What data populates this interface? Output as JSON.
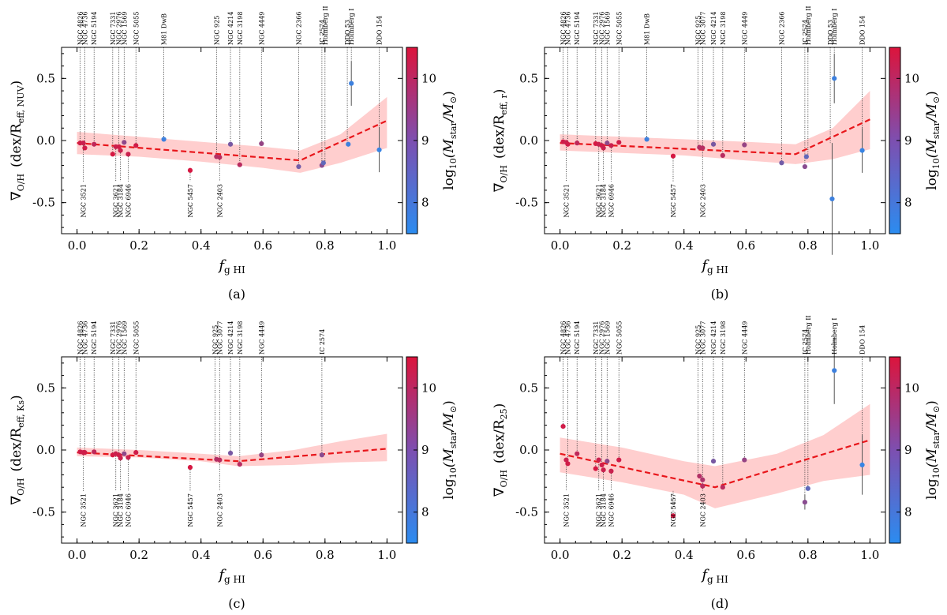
{
  "figure": {
    "panel_labels": [
      "(a)",
      "(b)",
      "(c)",
      "(d)"
    ],
    "colorbar": {
      "label": "log10(Mstar/M⊙)",
      "range": [
        7.5,
        10.5
      ],
      "ticks": [
        8,
        9,
        10
      ],
      "low_color": "#2b8cf0",
      "high_color": "#dc143c"
    },
    "band_color": "#ffc2c2",
    "fit_color": "#e8161b"
  },
  "chart_data": [
    {
      "type": "scatter",
      "panel": "(a)",
      "xlabel": "f g HI",
      "ylabel": "∇O/H (dex/Reff, NUV)",
      "ylabel_parts": {
        "main": "∇",
        "sub": "O/H",
        "unit": "(dex/R",
        "unit_sub": "eff, NUV",
        "close": ")"
      },
      "xlim": [
        -0.05,
        1.05
      ],
      "ylim": [
        -0.75,
        0.75
      ],
      "xticks": [
        0.0,
        0.2,
        0.4,
        0.6,
        0.8,
        1.0
      ],
      "yticks": [
        -0.5,
        0.0,
        0.5
      ],
      "fit": {
        "x": [
          0.0,
          0.72,
          1.0
        ],
        "y": [
          -0.02,
          -0.16,
          0.16
        ]
      },
      "band": {
        "x": [
          0.0,
          0.2,
          0.4,
          0.6,
          0.72,
          0.85,
          1.0
        ],
        "upper": [
          0.07,
          0.03,
          -0.01,
          -0.05,
          -0.08,
          0.05,
          0.35
        ],
        "lower": [
          -0.11,
          -0.13,
          -0.17,
          -0.22,
          -0.26,
          -0.18,
          -0.06
        ]
      },
      "points": [
        {
          "x": 0.01,
          "y": -0.02,
          "m": 10.3
        },
        {
          "x": 0.02,
          "y": -0.02,
          "m": 10.2
        },
        {
          "x": 0.025,
          "y": -0.06,
          "m": 10.3
        },
        {
          "x": 0.055,
          "y": -0.03,
          "m": 10.0
        },
        {
          "x": 0.115,
          "y": -0.11,
          "m": 10.4
        },
        {
          "x": 0.125,
          "y": -0.05,
          "m": 10.2
        },
        {
          "x": 0.135,
          "y": -0.05,
          "m": 10.3
        },
        {
          "x": 0.14,
          "y": -0.08,
          "m": 10.2
        },
        {
          "x": 0.152,
          "y": -0.015,
          "m": 9.2
        },
        {
          "x": 0.165,
          "y": -0.11,
          "m": 10.2
        },
        {
          "x": 0.19,
          "y": -0.04,
          "m": 10.3
        },
        {
          "x": 0.28,
          "y": 0.01,
          "m": 7.8
        },
        {
          "x": 0.365,
          "y": -0.24,
          "m": 10.4
        },
        {
          "x": 0.45,
          "y": -0.13,
          "m": 9.8
        },
        {
          "x": 0.46,
          "y": -0.135,
          "m": 9.9
        },
        {
          "x": 0.495,
          "y": -0.03,
          "m": 8.8
        },
        {
          "x": 0.525,
          "y": -0.195,
          "m": 9.9
        },
        {
          "x": 0.595,
          "y": -0.025,
          "m": 9.3
        },
        {
          "x": 0.715,
          "y": -0.21,
          "m": 8.7
        },
        {
          "x": 0.79,
          "y": -0.2,
          "m": 9.1
        },
        {
          "x": 0.795,
          "y": -0.18,
          "m": 8.4
        },
        {
          "x": 0.875,
          "y": -0.03,
          "m": 7.8
        },
        {
          "x": 0.885,
          "y": 0.46,
          "m": 7.8,
          "err": 0.18
        },
        {
          "x": 0.975,
          "y": -0.075,
          "m": 7.7,
          "err": 0.18
        }
      ],
      "labels_top": [
        {
          "x": 0.01,
          "text": "NGC 4826"
        },
        {
          "x": 0.025,
          "text": "NGC 4736"
        },
        {
          "x": 0.055,
          "text": "NGC 5194"
        },
        {
          "x": 0.115,
          "text": "NGC 7331"
        },
        {
          "x": 0.135,
          "text": "NGC 2976"
        },
        {
          "x": 0.152,
          "text": "NGC 1569"
        },
        {
          "x": 0.19,
          "text": "NGC 5055"
        },
        {
          "x": 0.28,
          "text": "M81 DwB"
        },
        {
          "x": 0.45,
          "text": "NGC 925"
        },
        {
          "x": 0.495,
          "text": "NGC 4214"
        },
        {
          "x": 0.525,
          "text": "NGC 3198"
        },
        {
          "x": 0.595,
          "text": "NGC 4449"
        },
        {
          "x": 0.715,
          "text": "NGC 2366"
        },
        {
          "x": 0.79,
          "text": "IC 2574"
        },
        {
          "x": 0.8,
          "text": "Holmberg II"
        },
        {
          "x": 0.872,
          "text": "DDO 53"
        },
        {
          "x": 0.885,
          "text": "Holmberg I"
        },
        {
          "x": 0.975,
          "text": "DDO 154"
        }
      ],
      "labels_bottom": [
        {
          "x": 0.02,
          "text": "NGC 3521"
        },
        {
          "x": 0.125,
          "text": "NGC 3621"
        },
        {
          "x": 0.14,
          "text": "NGC 3184"
        },
        {
          "x": 0.165,
          "text": "NGC 6946"
        },
        {
          "x": 0.365,
          "text": "NGC 5457"
        },
        {
          "x": 0.46,
          "text": "NGC 2403"
        }
      ]
    },
    {
      "type": "scatter",
      "panel": "(b)",
      "xlabel": "f g HI",
      "ylabel": "∇O/H (dex/Reff, r)",
      "ylabel_parts": {
        "main": "∇",
        "sub": "O/H",
        "unit": "(dex/R",
        "unit_sub": "eff, r",
        "close": ")"
      },
      "xlim": [
        -0.05,
        1.05
      ],
      "ylim": [
        -0.75,
        0.75
      ],
      "xticks": [
        0.0,
        0.2,
        0.4,
        0.6,
        0.8,
        1.0
      ],
      "yticks": [
        -0.5,
        0.0,
        0.5
      ],
      "fit": {
        "x": [
          0.0,
          0.76,
          1.0
        ],
        "y": [
          -0.02,
          -0.11,
          0.17
        ]
      },
      "band": {
        "x": [
          0.0,
          0.2,
          0.4,
          0.6,
          0.76,
          0.88,
          1.0
        ],
        "upper": [
          0.05,
          0.03,
          0.01,
          -0.01,
          -0.03,
          0.1,
          0.4
        ],
        "lower": [
          -0.08,
          -0.1,
          -0.12,
          -0.16,
          -0.19,
          -0.15,
          -0.07
        ]
      },
      "points": [
        {
          "x": 0.01,
          "y": -0.01,
          "m": 10.3
        },
        {
          "x": 0.02,
          "y": -0.015,
          "m": 10.2
        },
        {
          "x": 0.025,
          "y": -0.03,
          "m": 10.3
        },
        {
          "x": 0.055,
          "y": -0.02,
          "m": 10.0
        },
        {
          "x": 0.115,
          "y": -0.025,
          "m": 10.4
        },
        {
          "x": 0.125,
          "y": -0.03,
          "m": 10.2
        },
        {
          "x": 0.135,
          "y": -0.04,
          "m": 10.3
        },
        {
          "x": 0.14,
          "y": -0.06,
          "m": 10.2
        },
        {
          "x": 0.152,
          "y": -0.02,
          "m": 9.2
        },
        {
          "x": 0.165,
          "y": -0.04,
          "m": 10.2
        },
        {
          "x": 0.19,
          "y": -0.015,
          "m": 10.3
        },
        {
          "x": 0.28,
          "y": 0.01,
          "m": 7.8
        },
        {
          "x": 0.365,
          "y": -0.125,
          "m": 10.4
        },
        {
          "x": 0.45,
          "y": -0.055,
          "m": 9.8
        },
        {
          "x": 0.46,
          "y": -0.06,
          "m": 9.9
        },
        {
          "x": 0.495,
          "y": -0.03,
          "m": 8.8
        },
        {
          "x": 0.525,
          "y": -0.12,
          "m": 9.9
        },
        {
          "x": 0.595,
          "y": -0.035,
          "m": 9.3
        },
        {
          "x": 0.715,
          "y": -0.18,
          "m": 8.7
        },
        {
          "x": 0.79,
          "y": -0.21,
          "m": 9.1
        },
        {
          "x": 0.795,
          "y": -0.13,
          "m": 8.4
        },
        {
          "x": 0.878,
          "y": -0.47,
          "m": 7.8,
          "err": 0.45
        },
        {
          "x": 0.885,
          "y": 0.5,
          "m": 7.8,
          "err": 0.2
        },
        {
          "x": 0.975,
          "y": -0.08,
          "m": 7.7,
          "err": 0.18
        }
      ],
      "labels_top": [
        {
          "x": 0.01,
          "text": "NGC 4826"
        },
        {
          "x": 0.025,
          "text": "NGC 4736"
        },
        {
          "x": 0.055,
          "text": "NGC 5194"
        },
        {
          "x": 0.115,
          "text": "NGC 7331"
        },
        {
          "x": 0.135,
          "text": "NGC 2976"
        },
        {
          "x": 0.152,
          "text": "NGC 1569"
        },
        {
          "x": 0.19,
          "text": "NGC 5055"
        },
        {
          "x": 0.28,
          "text": "M81 DwB"
        },
        {
          "x": 0.445,
          "text": "NGC 925"
        },
        {
          "x": 0.46,
          "text": "NGC 3077"
        },
        {
          "x": 0.495,
          "text": "NGC 4214"
        },
        {
          "x": 0.525,
          "text": "NGC 3198"
        },
        {
          "x": 0.595,
          "text": "NGC 4449"
        },
        {
          "x": 0.715,
          "text": "NGC 2366"
        },
        {
          "x": 0.79,
          "text": "IC 2574"
        },
        {
          "x": 0.8,
          "text": "Holmberg II"
        },
        {
          "x": 0.872,
          "text": "DDO 53"
        },
        {
          "x": 0.885,
          "text": "Holmberg I"
        },
        {
          "x": 0.975,
          "text": "DDO 154"
        }
      ],
      "labels_bottom": [
        {
          "x": 0.02,
          "text": "NGC 3521"
        },
        {
          "x": 0.125,
          "text": "NGC 3621"
        },
        {
          "x": 0.14,
          "text": "NGC 3184"
        },
        {
          "x": 0.165,
          "text": "NGC 6946"
        },
        {
          "x": 0.365,
          "text": "NGC 5457"
        },
        {
          "x": 0.46,
          "text": "NGC 2403"
        }
      ]
    },
    {
      "type": "scatter",
      "panel": "(c)",
      "xlabel": "f g HI",
      "ylabel": "∇O/H (dex/Reff, Ks)",
      "ylabel_parts": {
        "main": "∇",
        "sub": "O/H",
        "unit": "(dex/R",
        "unit_sub": "eff, Ks",
        "close": ")"
      },
      "xlim": [
        -0.05,
        1.05
      ],
      "ylim": [
        -0.75,
        0.75
      ],
      "xticks": [
        0.0,
        0.2,
        0.4,
        0.6,
        0.8,
        1.0
      ],
      "yticks": [
        -0.5,
        0.0,
        0.5
      ],
      "fit": {
        "x": [
          0.0,
          0.52,
          1.0
        ],
        "y": [
          -0.02,
          -0.09,
          0.01
        ]
      },
      "band": {
        "x": [
          0.0,
          0.2,
          0.4,
          0.52,
          0.7,
          0.85,
          1.0
        ],
        "upper": [
          0.02,
          0.0,
          -0.03,
          -0.05,
          0.0,
          0.07,
          0.13
        ],
        "lower": [
          -0.05,
          -0.06,
          -0.09,
          -0.13,
          -0.12,
          -0.1,
          -0.09
        ]
      },
      "points": [
        {
          "x": 0.01,
          "y": -0.015,
          "m": 10.3
        },
        {
          "x": 0.02,
          "y": -0.02,
          "m": 10.2
        },
        {
          "x": 0.025,
          "y": -0.02,
          "m": 10.3
        },
        {
          "x": 0.055,
          "y": -0.015,
          "m": 10.0
        },
        {
          "x": 0.115,
          "y": -0.04,
          "m": 10.4
        },
        {
          "x": 0.125,
          "y": -0.03,
          "m": 10.2
        },
        {
          "x": 0.135,
          "y": -0.04,
          "m": 10.3
        },
        {
          "x": 0.14,
          "y": -0.065,
          "m": 10.2
        },
        {
          "x": 0.152,
          "y": -0.03,
          "m": 9.2
        },
        {
          "x": 0.165,
          "y": -0.06,
          "m": 10.2
        },
        {
          "x": 0.19,
          "y": -0.02,
          "m": 10.3
        },
        {
          "x": 0.365,
          "y": -0.14,
          "m": 10.4
        },
        {
          "x": 0.45,
          "y": -0.075,
          "m": 9.8
        },
        {
          "x": 0.46,
          "y": -0.08,
          "m": 9.9
        },
        {
          "x": 0.495,
          "y": -0.025,
          "m": 8.8
        },
        {
          "x": 0.525,
          "y": -0.115,
          "m": 9.9
        },
        {
          "x": 0.595,
          "y": -0.04,
          "m": 9.3
        },
        {
          "x": 0.79,
          "y": -0.04,
          "m": 9.1
        }
      ],
      "labels_top": [
        {
          "x": 0.01,
          "text": "NGC 4826"
        },
        {
          "x": 0.025,
          "text": "NGC 4736"
        },
        {
          "x": 0.055,
          "text": "NGC 5194"
        },
        {
          "x": 0.115,
          "text": "NGC 7331"
        },
        {
          "x": 0.135,
          "text": "NGC 2976"
        },
        {
          "x": 0.152,
          "text": "NGC 1569"
        },
        {
          "x": 0.19,
          "text": "NGC 5055"
        },
        {
          "x": 0.445,
          "text": "NGC 925"
        },
        {
          "x": 0.46,
          "text": "NGC 3077"
        },
        {
          "x": 0.495,
          "text": "NGC 4214"
        },
        {
          "x": 0.525,
          "text": "NGC 3198"
        },
        {
          "x": 0.595,
          "text": "NGC 4449"
        },
        {
          "x": 0.79,
          "text": "IC 2574"
        }
      ],
      "labels_bottom": [
        {
          "x": 0.02,
          "text": "NGC 3521"
        },
        {
          "x": 0.125,
          "text": "NGC 3621"
        },
        {
          "x": 0.14,
          "text": "NGC 3184"
        },
        {
          "x": 0.165,
          "text": "NGC 6946"
        },
        {
          "x": 0.365,
          "text": "NGC 5457"
        },
        {
          "x": 0.46,
          "text": "NGC 2403"
        }
      ]
    },
    {
      "type": "scatter",
      "panel": "(d)",
      "xlabel": "f g HI",
      "ylabel": "∇O/H (dex/R25)",
      "ylabel_parts": {
        "main": "∇",
        "sub": "O/H",
        "unit": "(dex/R",
        "unit_sub": "25",
        "close": ")"
      },
      "xlim": [
        -0.05,
        1.05
      ],
      "ylim": [
        -0.75,
        0.75
      ],
      "xticks": [
        0.0,
        0.2,
        0.4,
        0.6,
        0.8,
        1.0
      ],
      "yticks": [
        -0.5,
        0.0,
        0.5
      ],
      "fit": {
        "x": [
          0.0,
          0.5,
          1.0
        ],
        "y": [
          -0.03,
          -0.3,
          0.08
        ]
      },
      "band": {
        "x": [
          0.0,
          0.2,
          0.4,
          0.5,
          0.7,
          0.85,
          1.0
        ],
        "upper": [
          0.1,
          0.02,
          -0.09,
          -0.13,
          -0.03,
          0.12,
          0.37
        ],
        "lower": [
          -0.18,
          -0.26,
          -0.36,
          -0.47,
          -0.35,
          -0.25,
          -0.2
        ]
      },
      "points": [
        {
          "x": 0.01,
          "y": 0.19,
          "m": 10.3
        },
        {
          "x": 0.02,
          "y": -0.08,
          "m": 10.2
        },
        {
          "x": 0.025,
          "y": -0.11,
          "m": 10.3
        },
        {
          "x": 0.055,
          "y": -0.03,
          "m": 10.0
        },
        {
          "x": 0.115,
          "y": -0.15,
          "m": 10.4
        },
        {
          "x": 0.125,
          "y": -0.08,
          "m": 10.2
        },
        {
          "x": 0.135,
          "y": -0.12,
          "m": 10.3
        },
        {
          "x": 0.14,
          "y": -0.16,
          "m": 10.2
        },
        {
          "x": 0.152,
          "y": -0.09,
          "m": 9.2
        },
        {
          "x": 0.165,
          "y": -0.17,
          "m": 10.2
        },
        {
          "x": 0.19,
          "y": -0.08,
          "m": 10.3
        },
        {
          "x": 0.365,
          "y": -0.53,
          "m": 10.4
        },
        {
          "x": 0.45,
          "y": -0.21,
          "m": 9.8
        },
        {
          "x": 0.46,
          "y": -0.29,
          "m": 9.9
        },
        {
          "x": 0.46,
          "y": -0.24,
          "m": 9.7
        },
        {
          "x": 0.495,
          "y": -0.09,
          "m": 8.8
        },
        {
          "x": 0.525,
          "y": -0.3,
          "m": 9.9
        },
        {
          "x": 0.595,
          "y": -0.08,
          "m": 9.3
        },
        {
          "x": 0.79,
          "y": -0.42,
          "m": 9.1,
          "err": 0.06
        },
        {
          "x": 0.8,
          "y": -0.31,
          "m": 8.4
        },
        {
          "x": 0.885,
          "y": 0.64,
          "m": 7.8,
          "err": 0.27
        },
        {
          "x": 0.975,
          "y": -0.12,
          "m": 7.7,
          "err": 0.24
        }
      ],
      "labels_top": [
        {
          "x": 0.01,
          "text": "NGC 4826"
        },
        {
          "x": 0.025,
          "text": "NGC 4736"
        },
        {
          "x": 0.055,
          "text": "NGC 5194"
        },
        {
          "x": 0.115,
          "text": "NGC 7331"
        },
        {
          "x": 0.135,
          "text": "NGC 2976"
        },
        {
          "x": 0.152,
          "text": "NGC 1569"
        },
        {
          "x": 0.19,
          "text": "NGC 5055"
        },
        {
          "x": 0.445,
          "text": "NGC 925"
        },
        {
          "x": 0.46,
          "text": "NGC 3077"
        },
        {
          "x": 0.495,
          "text": "NGC 4214"
        },
        {
          "x": 0.525,
          "text": "NGC 3198"
        },
        {
          "x": 0.595,
          "text": "NGC 4449"
        },
        {
          "x": 0.79,
          "text": "IC 2574"
        },
        {
          "x": 0.8,
          "text": "Holmberg II"
        },
        {
          "x": 0.885,
          "text": "Holmberg I"
        },
        {
          "x": 0.975,
          "text": "DDO 154"
        }
      ],
      "labels_bottom": [
        {
          "x": 0.02,
          "text": "NGC 3521"
        },
        {
          "x": 0.125,
          "text": "NGC 3621"
        },
        {
          "x": 0.14,
          "text": "NGC 3184"
        },
        {
          "x": 0.165,
          "text": "NGC 6946"
        },
        {
          "x": 0.365,
          "text": "NGC 5457"
        },
        {
          "x": 0.46,
          "text": "NGC 2403"
        }
      ]
    }
  ]
}
